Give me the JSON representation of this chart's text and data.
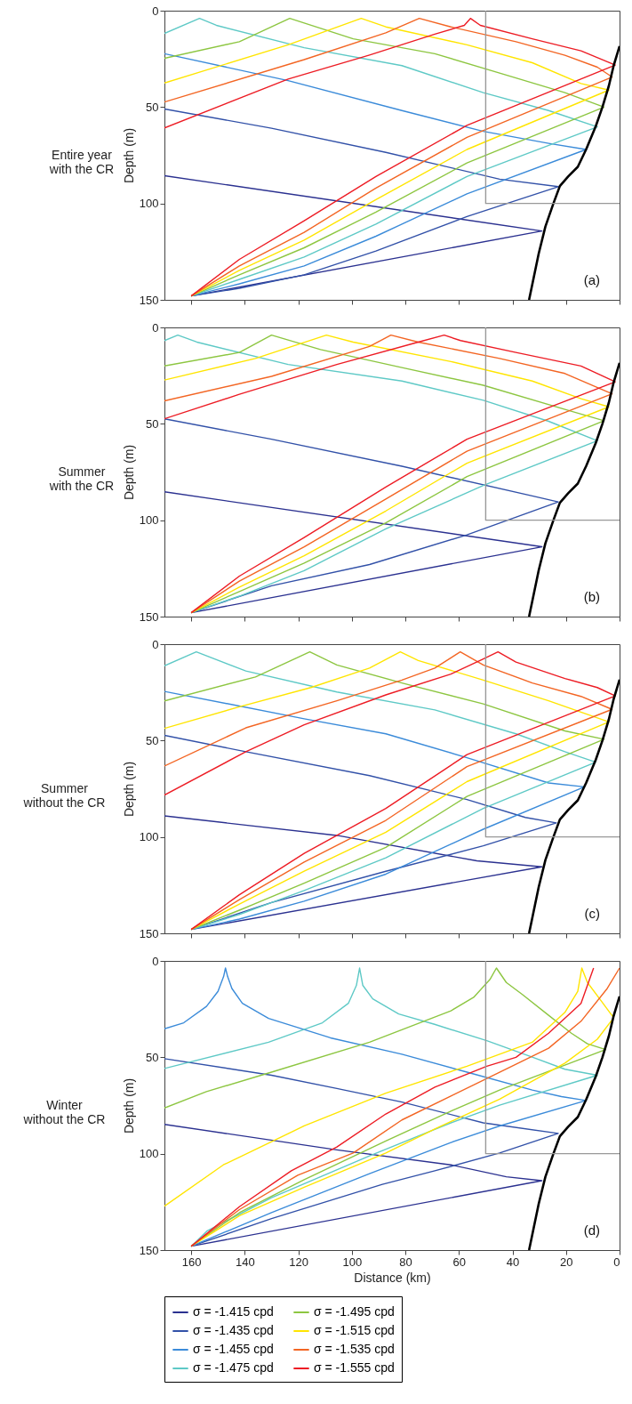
{
  "chart_data": [
    {
      "type": "line",
      "title": "Entire year\nwith the CR",
      "ylabel": "Depth (m)",
      "xlim": [
        170,
        0
      ],
      "ylim": [
        150,
        0
      ],
      "xticks": [
        160,
        140,
        120,
        100,
        80,
        60,
        40,
        20,
        0
      ],
      "yticks": [
        0,
        50,
        100,
        150
      ],
      "tick_labels": "y",
      "annotations": [
        "(a)"
      ],
      "series": [
        {
          "color": "#2b3190",
          "x": [
            170,
            29,
            160
          ],
          "values": [
            85.6,
            114.3,
            148
          ]
        },
        {
          "color": "#3251a8",
          "x": [
            170,
            130,
            87.3,
            44.8,
            22.9,
            57,
            91,
            117.8,
            142,
            160
          ],
          "values": [
            51,
            61,
            73.5,
            87.4,
            91.3,
            106.8,
            124.7,
            137,
            144,
            148
          ]
        },
        {
          "color": "#3b8bd9",
          "x": [
            170,
            123.8,
            81.3,
            50.9,
            26.5,
            12.5,
            57,
            91,
            117.8,
            142,
            160
          ],
          "values": [
            22.3,
            36.3,
            51.8,
            62.6,
            68.8,
            72,
            95,
            117,
            132.4,
            141.7,
            148
          ]
        },
        {
          "color": "#5ec9c6",
          "x": [
            170,
            156.9,
            150.6,
            117.8,
            81.3,
            50.9,
            26.5,
            8.3,
            57,
            91,
            117.8,
            142,
            160
          ],
          "values": [
            11.8,
            4,
            7.6,
            19.2,
            28.5,
            42.5,
            51.8,
            60.3,
            86,
            110.7,
            127.8,
            139.4,
            148
          ]
        },
        {
          "color": "#8dc641",
          "x": [
            170,
            142,
            123.2,
            99.5,
            69,
            44.8,
            20.4,
            5.8,
            57,
            91,
            117.8,
            142,
            160
          ],
          "values": [
            24.7,
            16.1,
            4,
            14.6,
            22.3,
            32.4,
            42.5,
            50,
            79,
            104.5,
            123,
            137,
            148
          ]
        },
        {
          "color": "#ffe500",
          "x": [
            170,
            123.8,
            96.5,
            87.3,
            57,
            32.6,
            14.4,
            4,
            57,
            91,
            117.8,
            142,
            160
          ],
          "values": [
            37.5,
            17.7,
            4,
            8.4,
            17.7,
            27,
            37.8,
            41.2,
            72,
            98,
            119,
            134.7,
            148
          ]
        },
        {
          "color": "#f36523",
          "x": [
            170,
            117.8,
            87.3,
            74.8,
            63,
            38.7,
            20.4,
            8.3,
            2.8,
            57,
            91,
            117.8,
            142,
            160
          ],
          "values": [
            47.4,
            25.4,
            11.5,
            4,
            8.4,
            16.1,
            23.1,
            29.3,
            34.4,
            65.7,
            92,
            115,
            132.4,
            148
          ]
        },
        {
          "color": "#ed1c24",
          "x": [
            170,
            123.8,
            93.4,
            69,
            58,
            55.7,
            52,
            32.6,
            14.4,
            1.6,
            57,
            91,
            117.8,
            142,
            160
          ],
          "values": [
            60.8,
            35.5,
            23,
            12.2,
            7.6,
            4,
            7.6,
            14.6,
            20.8,
            28.2,
            59.5,
            86,
            109,
            129,
            148
          ]
        },
        {
          "color": "#000000",
          "x": [
            0,
            2.2,
            4,
            6.4,
            8.9,
            12.5,
            15.6,
            19.2,
            22.3,
            24.7,
            27.7,
            30.2,
            32.6,
            33.8
          ],
          "values": [
            18.4,
            28.5,
            39,
            50,
            60,
            72,
            81,
            86,
            91,
            100,
            112,
            126,
            142,
            150
          ]
        },
        {
          "color": "#999999",
          "x": [
            0,
            50,
            50
          ],
          "values": [
            100,
            100,
            0
          ]
        }
      ]
    },
    {
      "type": "line",
      "title": "Summer\nwith the CR",
      "ylabel": "Depth (m)",
      "xlim": [
        170,
        0
      ],
      "ylim": [
        150,
        0
      ],
      "xticks": [
        160,
        140,
        120,
        100,
        80,
        60,
        40,
        20,
        0
      ],
      "yticks": [
        0,
        50,
        100,
        150
      ],
      "tick_labels": "y",
      "annotations": [
        "(b)"
      ],
      "series": [
        {
          "color": "#2b3190",
          "x": [
            170,
            29,
            160
          ],
          "values": [
            85.3,
            113.8,
            148
          ]
        },
        {
          "color": "#3251a8",
          "x": [
            170,
            130,
            81.3,
            32.6,
            22.9,
            57,
            93.4,
            130,
            160
          ],
          "values": [
            47.4,
            58,
            72,
            87.4,
            90.5,
            107.6,
            123,
            134,
            148
          ]
        },
        {
          "color": "#5ec9c6",
          "x": [
            170,
            165,
            157.9,
            123.8,
            81.3,
            50.9,
            26.5,
            8.3,
            50.9,
            87.3,
            117.8,
            142,
            160
          ],
          "values": [
            6.8,
            4,
            7.6,
            19.2,
            27.8,
            37.8,
            48.7,
            58.8,
            82,
            104.5,
            126.2,
            139.4,
            148
          ]
        },
        {
          "color": "#8dc641",
          "x": [
            170,
            142,
            130,
            111.7,
            81.3,
            50.9,
            20.4,
            5.8,
            57,
            87.3,
            117.8,
            142,
            160
          ],
          "values": [
            20,
            13,
            4,
            11.5,
            20.8,
            30,
            42.5,
            48.4,
            77.4,
            101.4,
            122.3,
            137,
            148
          ]
        },
        {
          "color": "#ffe500",
          "x": [
            170,
            136,
            109.5,
            99.5,
            63,
            32.6,
            14.4,
            4,
            57,
            87.3,
            117.8,
            142,
            160
          ],
          "values": [
            27.3,
            16.1,
            4,
            7.6,
            17.7,
            27.8,
            37,
            41.2,
            70.4,
            95.2,
            118.4,
            134.7,
            148
          ]
        },
        {
          "color": "#f36523",
          "x": [
            170,
            130,
            93.4,
            85.4,
            75.2,
            44.8,
            20.4,
            2.8,
            57,
            87.3,
            117.8,
            142,
            160
          ],
          "values": [
            38.1,
            25.4,
            9.9,
            4,
            7.6,
            16.1,
            23.9,
            34.4,
            64.2,
            89,
            113.8,
            131.6,
            148
          ]
        },
        {
          "color": "#ed1c24",
          "x": [
            170,
            142,
            105.6,
            75.2,
            65.5,
            59.4,
            38.7,
            14.4,
            1.6,
            57,
            87.3,
            117.8,
            142,
            160
          ],
          "values": [
            47.4,
            34.7,
            19.2,
            7.6,
            4,
            6.8,
            13,
            20,
            28.2,
            58,
            82.8,
            109,
            129,
            148
          ]
        },
        {
          "color": "#000000",
          "x": [
            0,
            2.2,
            4,
            6.4,
            8.9,
            12.5,
            15.6,
            19.2,
            22.3,
            24.7,
            27.7,
            30.2,
            32.6,
            33.8
          ],
          "values": [
            18.4,
            28.5,
            39,
            50,
            60,
            72,
            81,
            86,
            91,
            100,
            112,
            126,
            142,
            150
          ]
        },
        {
          "color": "#999999",
          "x": [
            0,
            50,
            50
          ],
          "values": [
            100,
            100,
            0
          ]
        }
      ]
    },
    {
      "type": "line",
      "title": "Summer\nwithout the CR",
      "ylabel": "Depth (m)",
      "xlim": [
        170,
        0
      ],
      "ylim": [
        150,
        0
      ],
      "xticks": [
        160,
        140,
        120,
        100,
        80,
        60,
        40,
        20,
        0
      ],
      "yticks": [
        0,
        50,
        100,
        150
      ],
      "tick_labels": "y",
      "annotations": [
        "(c)"
      ],
      "series": [
        {
          "color": "#2b3190",
          "x": [
            170,
            105.6,
            53.3,
            29,
            160
          ],
          "values": [
            89.1,
            99.2,
            112.4,
            115.5,
            148
          ]
        },
        {
          "color": "#3251a8",
          "x": [
            170,
            139.6,
            93.4,
            57,
            35.2,
            23.6,
            50.9,
            87.3,
            130,
            160
          ],
          "values": [
            47.3,
            55.8,
            68.2,
            80.6,
            89.9,
            92.7,
            104.6,
            117.8,
            134,
            148
          ]
        },
        {
          "color": "#3b8bd9",
          "x": [
            170,
            117.8,
            87.3,
            57,
            26.5,
            13.1,
            50.9,
            87.3,
            117.8,
            142,
            160
          ],
          "values": [
            24.5,
            38.7,
            46.5,
            58.9,
            72,
            74,
            96,
            119.3,
            133.3,
            142.6,
            148
          ]
        },
        {
          "color": "#5ec9c6",
          "x": [
            170,
            158.1,
            139.6,
            105.6,
            69,
            38.7,
            20.4,
            8.9,
            50.9,
            87.3,
            117.8,
            142,
            160
          ],
          "values": [
            11.2,
            4,
            13.9,
            24.8,
            34.1,
            46.5,
            55.8,
            61.2,
            85.2,
            110.8,
            127.8,
            140.2,
            148
          ]
        },
        {
          "color": "#8dc641",
          "x": [
            170,
            136,
            115.7,
            105.6,
            81.3,
            50.9,
            20.4,
            5.8,
            57,
            87.3,
            117.8,
            142,
            160
          ],
          "values": [
            29.4,
            17,
            4,
            10.8,
            20.1,
            31,
            45,
            49.3,
            79,
            105.4,
            124,
            138,
            148
          ]
        },
        {
          "color": "#ffe500",
          "x": [
            170,
            142,
            115.3,
            93.4,
            81.9,
            75.2,
            50.9,
            26.5,
            4,
            57,
            87.3,
            117.8,
            142,
            160
          ],
          "values": [
            43.7,
            32.5,
            22.5,
            12.4,
            4,
            8.5,
            18.6,
            29.4,
            40.3,
            71.3,
            97.6,
            117.8,
            134.8,
            148
          ]
        },
        {
          "color": "#f36523",
          "x": [
            170,
            139.6,
            105.6,
            81.3,
            69,
            59.5,
            50.9,
            32.6,
            14.4,
            2.8,
            57,
            87.3,
            117.8,
            142,
            160
          ],
          "values": [
            63.2,
            43.4,
            29.4,
            18.6,
            12.4,
            4,
            10.8,
            20.1,
            27.1,
            33.8,
            63.5,
            91.4,
            113,
            132.5,
            148
          ]
        },
        {
          "color": "#ed1c24",
          "x": [
            170,
            139.6,
            117.8,
            87.3,
            63,
            50.9,
            45.4,
            38.7,
            20.4,
            8.3,
            1.6,
            57,
            87.3,
            117.8,
            142,
            160
          ],
          "values": [
            78.3,
            55.8,
            41.8,
            26.3,
            15.5,
            7.7,
            4,
            9.3,
            17.8,
            22.5,
            26.8,
            57.3,
            85.2,
            108.5,
            130,
            148
          ]
        },
        {
          "color": "#000000",
          "x": [
            0,
            2.2,
            4,
            6.4,
            8.9,
            12.5,
            15.6,
            19.2,
            22.3,
            24.7,
            27.7,
            30.2,
            32.6,
            33.8
          ],
          "values": [
            18.4,
            28.5,
            39,
            50,
            60,
            72,
            81,
            86,
            91,
            100,
            112,
            126,
            142,
            150
          ]
        },
        {
          "color": "#999999",
          "x": [
            0,
            50,
            50
          ],
          "values": [
            100,
            100,
            0
          ]
        }
      ]
    },
    {
      "type": "line",
      "title": "Winter\nwithout the CR",
      "xlabel": "Distance (km)",
      "ylabel": "Depth (m)",
      "xlim": [
        170,
        0
      ],
      "ylim": [
        150,
        0
      ],
      "xticks": [
        160,
        140,
        120,
        100,
        80,
        60,
        40,
        20,
        0
      ],
      "yticks": [
        0,
        50,
        100,
        150
      ],
      "legend": "bottom",
      "annotations": [
        "(d)"
      ],
      "series": [
        {
          "name": "σ = -1.415 cpd",
          "color": "#2b3190",
          "x": [
            170,
            105.6,
            63,
            42.3,
            29,
            160
          ],
          "values": [
            84.8,
            98,
            105.8,
            112,
            114,
            148
          ]
        },
        {
          "name": "σ = -1.435 cpd",
          "color": "#3251a8",
          "x": [
            170,
            130,
            105.6,
            81.3,
            50.9,
            22.9,
            44.8,
            69,
            88.6,
            130,
            160
          ],
          "values": [
            50.7,
            59.3,
            66.2,
            73.2,
            84,
            89.5,
            99.6,
            108.9,
            115.9,
            133.7,
            148
          ]
        },
        {
          "name": "σ = -1.455 cpd",
          "color": "#3b8bd9",
          "x": [
            170,
            162.8,
            154.3,
            150,
            147.9,
            147.2,
            146.4,
            144.8,
            140.9,
            131.1,
            108,
            81.3,
            57,
            32.6,
            21.7,
            12.5,
            44.8,
            63,
            93.4,
            130,
            160
          ],
          "values": [
            35.2,
            32.1,
            23.6,
            15.8,
            8.1,
            3.7,
            8.1,
            14.3,
            22,
            29.8,
            39.9,
            48.4,
            57.7,
            67,
            70.4,
            72.4,
            85.6,
            94.2,
            110.4,
            130.6,
            148
          ]
        },
        {
          "name": "σ = -1.475 cpd",
          "color": "#5ec9c6",
          "x": [
            170,
            131.1,
            111,
            101.3,
            98.3,
            97.1,
            95.9,
            92.2,
            82.5,
            69.1,
            49.6,
            32.6,
            20.4,
            8.3,
            44.8,
            63,
            93.4,
            130,
            154,
            160
          ],
          "values": [
            55.8,
            42.2,
            32.1,
            22,
            12.7,
            3.7,
            12.7,
            19.7,
            27.5,
            32.9,
            41.4,
            49.9,
            56.2,
            59.3,
            74.8,
            84,
            101.1,
            122.8,
            140,
            148
          ]
        },
        {
          "name": "σ = -1.495 cpd",
          "color": "#8dc641",
          "x": [
            170,
            154.3,
            130,
            93.4,
            63,
            54.5,
            48.4,
            46,
            42.3,
            36.3,
            26.5,
            18,
            12,
            5.2,
            44.8,
            63,
            87.3,
            117.8,
            142,
            160
          ],
          "values": [
            76.3,
            67.8,
            57.7,
            42.2,
            25.9,
            18.9,
            9.6,
            3.7,
            11.2,
            17.4,
            28.2,
            37.5,
            43,
            46,
            67,
            77.9,
            93.4,
            113.5,
            130.6,
            148
          ]
        },
        {
          "name": "σ = -1.515 cpd",
          "color": "#ffe500",
          "x": [
            170,
            148,
            117.8,
            87.3,
            57,
            32.6,
            20.4,
            15.6,
            14.1,
            12,
            7,
            2.2,
            8.3,
            20.4,
            44.8,
            69,
            87.3,
            117.8,
            142,
            160
          ],
          "values": [
            127.2,
            105.8,
            85.6,
            68.6,
            54.6,
            42.2,
            26.7,
            15.8,
            3.7,
            11.2,
            20.5,
            29.5,
            40.6,
            53,
            71.7,
            87.2,
            99.6,
            117.4,
            132.2,
            148
          ]
        },
        {
          "name": "σ = -1.535 cpd",
          "color": "#f36523",
          "x": [
            0,
            4.6,
            14.4,
            26.5,
            44.8,
            63,
            81.3,
            99.5,
            120.2,
            142,
            160
          ],
          "values": [
            3.7,
            14.3,
            31.3,
            45.3,
            57.7,
            70.1,
            82.5,
            99.6,
            111.2,
            129,
            148
          ]
        },
        {
          "name": "σ = -1.555 cpd",
          "color": "#ed1c24",
          "x": [
            9.7,
            14.4,
            26.5,
            38.7,
            49.6,
            69,
            87.3,
            105.6,
            122.6,
            142,
            160
          ],
          "values": [
            3.7,
            22,
            37.5,
            50,
            54.6,
            65.5,
            79.4,
            96.5,
            108.9,
            127.5,
            148
          ]
        },
        {
          "color": "#000000",
          "x": [
            0,
            2.2,
            4,
            6.4,
            8.9,
            12.5,
            15.6,
            19.2,
            22.3,
            24.7,
            27.7,
            30.2,
            32.6,
            33.8
          ],
          "values": [
            18.4,
            28.5,
            39,
            50,
            60,
            72,
            81,
            86,
            91,
            100,
            112,
            126,
            142,
            150
          ]
        },
        {
          "color": "#999999",
          "x": [
            0,
            50,
            50
          ],
          "values": [
            100,
            100,
            0
          ]
        }
      ]
    }
  ]
}
